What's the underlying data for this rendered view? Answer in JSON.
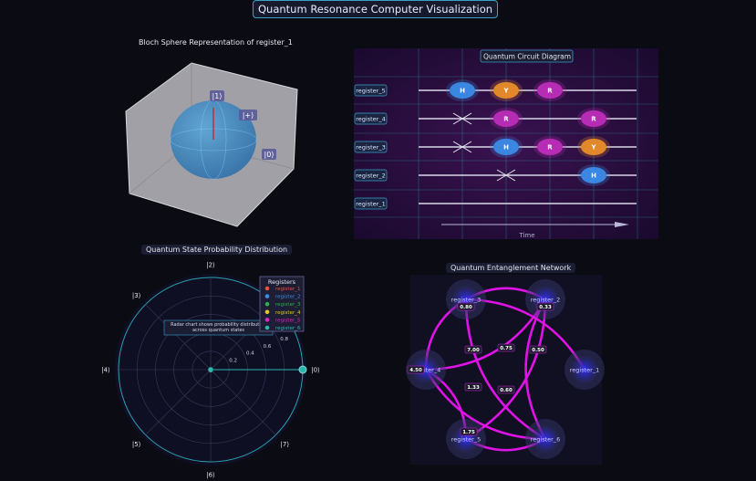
{
  "title": "Quantum Resonance Computer Visualization",
  "bloch": {
    "title": "Bloch Sphere Representation of register_1",
    "labels": [
      "|1⟩",
      "|+⟩",
      "|0⟩"
    ]
  },
  "circuit": {
    "title": "Quantum Circuit Diagram",
    "xlabel": "Time",
    "registers": [
      "register_5",
      "register_4",
      "register_3",
      "register_2",
      "register_1"
    ],
    "gates": [
      {
        "reg": 0,
        "step": 1,
        "type": "H"
      },
      {
        "reg": 0,
        "step": 2,
        "type": "Y"
      },
      {
        "reg": 0,
        "step": 3,
        "type": "R"
      },
      {
        "reg": 1,
        "step": 1,
        "type": "X"
      },
      {
        "reg": 1,
        "step": 2,
        "type": "R"
      },
      {
        "reg": 1,
        "step": 4,
        "type": "R"
      },
      {
        "reg": 2,
        "step": 1,
        "type": "X"
      },
      {
        "reg": 2,
        "step": 2,
        "type": "H"
      },
      {
        "reg": 2,
        "step": 3,
        "type": "R"
      },
      {
        "reg": 2,
        "step": 4,
        "type": "Y"
      },
      {
        "reg": 3,
        "step": 2,
        "type": "X"
      },
      {
        "reg": 3,
        "step": 4,
        "type": "H"
      }
    ],
    "gate_colors": {
      "H": "#3a86e0",
      "Y": "#e0882a",
      "R": "#b62cb4"
    }
  },
  "chart_data": {
    "type": "radar",
    "title": "Quantum State Probability Distribution",
    "categories": [
      "|0⟩",
      "|1⟩",
      "|2⟩",
      "|3⟩",
      "|4⟩",
      "|5⟩",
      "|6⟩",
      "|7⟩"
    ],
    "series": [
      {
        "name": "register_1",
        "color": "#e8503a",
        "values": [
          1,
          0,
          0,
          0,
          0,
          0,
          0,
          0
        ]
      },
      {
        "name": "register_2",
        "color": "#3a8ee6",
        "values": [
          1,
          0,
          0,
          0,
          0,
          0,
          0,
          0
        ]
      },
      {
        "name": "register_3",
        "color": "#2bb04a",
        "values": [
          1,
          0,
          0,
          0,
          0,
          0,
          0,
          0
        ]
      },
      {
        "name": "register_4",
        "color": "#e6c630",
        "values": [
          1,
          0,
          0,
          0,
          0,
          0,
          0,
          0
        ]
      },
      {
        "name": "register_5",
        "color": "#d42ac8",
        "values": [
          1,
          0,
          0,
          0,
          0,
          0,
          0,
          0
        ]
      },
      {
        "name": "register_6",
        "color": "#2ab8b0",
        "values": [
          1,
          0,
          0,
          0,
          0,
          0,
          0,
          0
        ]
      }
    ],
    "radial_ticks": [
      "0.2",
      "0.4",
      "0.6",
      "0.8"
    ],
    "rlim": [
      0,
      1
    ],
    "legend_title": "Registers",
    "legend_placement": "top-right",
    "annotation": "Radar chart shows probability distribution across quantum states"
  },
  "network": {
    "title": "Quantum Entanglement Network",
    "nodes": [
      {
        "id": "register_3",
        "value": "0.80"
      },
      {
        "id": "register_2",
        "value": "0.33"
      },
      {
        "id": "register_4",
        "value": "4.50"
      },
      {
        "id": "register_1",
        "value": ""
      },
      {
        "id": "register_5",
        "value": "1.75"
      },
      {
        "id": "register_6",
        "value": ""
      }
    ],
    "edges": [
      {
        "source": "register_3",
        "target": "register_2"
      },
      {
        "source": "register_3",
        "target": "register_4"
      },
      {
        "source": "register_3",
        "target": "register_1"
      },
      {
        "source": "register_3",
        "target": "register_6"
      },
      {
        "source": "register_2",
        "target": "register_4"
      },
      {
        "source": "register_2",
        "target": "register_6"
      },
      {
        "source": "register_2",
        "target": "register_5"
      },
      {
        "source": "register_4",
        "target": "register_6"
      },
      {
        "source": "register_4",
        "target": "register_5"
      },
      {
        "source": "register_5",
        "target": "register_6"
      }
    ],
    "edge_labels": [
      "7.00",
      "0.75",
      "0.50",
      "1.33",
      "0.60"
    ]
  }
}
